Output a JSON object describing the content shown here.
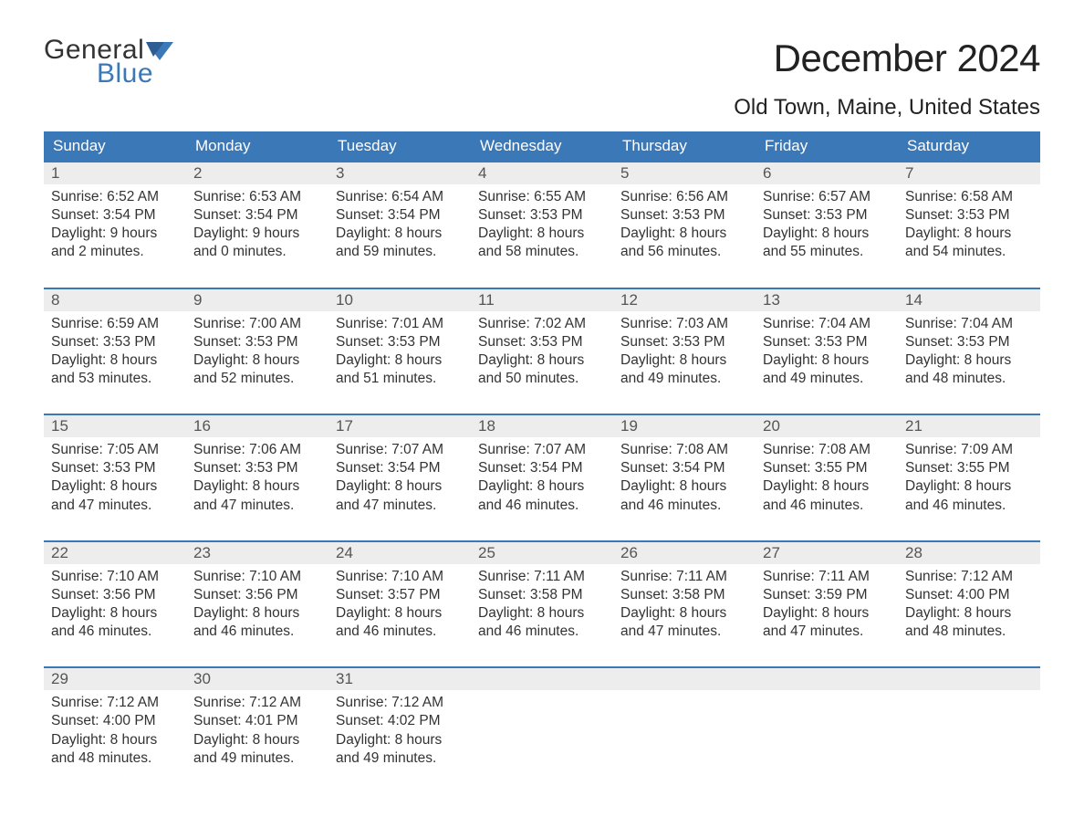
{
  "logo": {
    "text_top": "General",
    "text_bottom": "Blue",
    "flag_color": "#3b78b8",
    "text_top_color": "#333333",
    "text_bottom_color": "#3b78b8"
  },
  "title": "December 2024",
  "location": "Old Town, Maine, United States",
  "colors": {
    "header_bg": "#3b78b8",
    "header_text": "#ffffff",
    "row_border": "#3b78b8",
    "daynum_bg": "#ededed",
    "body_text": "#333333",
    "background": "#ffffff"
  },
  "typography": {
    "title_fontsize": 42,
    "location_fontsize": 24,
    "weekday_fontsize": 17,
    "daynum_fontsize": 17,
    "body_fontsize": 15.5
  },
  "weekdays": [
    "Sunday",
    "Monday",
    "Tuesday",
    "Wednesday",
    "Thursday",
    "Friday",
    "Saturday"
  ],
  "weeks": [
    [
      {
        "day": "1",
        "sunrise": "Sunrise: 6:52 AM",
        "sunset": "Sunset: 3:54 PM",
        "daylight": "Daylight: 9 hours and 2 minutes."
      },
      {
        "day": "2",
        "sunrise": "Sunrise: 6:53 AM",
        "sunset": "Sunset: 3:54 PM",
        "daylight": "Daylight: 9 hours and 0 minutes."
      },
      {
        "day": "3",
        "sunrise": "Sunrise: 6:54 AM",
        "sunset": "Sunset: 3:54 PM",
        "daylight": "Daylight: 8 hours and 59 minutes."
      },
      {
        "day": "4",
        "sunrise": "Sunrise: 6:55 AM",
        "sunset": "Sunset: 3:53 PM",
        "daylight": "Daylight: 8 hours and 58 minutes."
      },
      {
        "day": "5",
        "sunrise": "Sunrise: 6:56 AM",
        "sunset": "Sunset: 3:53 PM",
        "daylight": "Daylight: 8 hours and 56 minutes."
      },
      {
        "day": "6",
        "sunrise": "Sunrise: 6:57 AM",
        "sunset": "Sunset: 3:53 PM",
        "daylight": "Daylight: 8 hours and 55 minutes."
      },
      {
        "day": "7",
        "sunrise": "Sunrise: 6:58 AM",
        "sunset": "Sunset: 3:53 PM",
        "daylight": "Daylight: 8 hours and 54 minutes."
      }
    ],
    [
      {
        "day": "8",
        "sunrise": "Sunrise: 6:59 AM",
        "sunset": "Sunset: 3:53 PM",
        "daylight": "Daylight: 8 hours and 53 minutes."
      },
      {
        "day": "9",
        "sunrise": "Sunrise: 7:00 AM",
        "sunset": "Sunset: 3:53 PM",
        "daylight": "Daylight: 8 hours and 52 minutes."
      },
      {
        "day": "10",
        "sunrise": "Sunrise: 7:01 AM",
        "sunset": "Sunset: 3:53 PM",
        "daylight": "Daylight: 8 hours and 51 minutes."
      },
      {
        "day": "11",
        "sunrise": "Sunrise: 7:02 AM",
        "sunset": "Sunset: 3:53 PM",
        "daylight": "Daylight: 8 hours and 50 minutes."
      },
      {
        "day": "12",
        "sunrise": "Sunrise: 7:03 AM",
        "sunset": "Sunset: 3:53 PM",
        "daylight": "Daylight: 8 hours and 49 minutes."
      },
      {
        "day": "13",
        "sunrise": "Sunrise: 7:04 AM",
        "sunset": "Sunset: 3:53 PM",
        "daylight": "Daylight: 8 hours and 49 minutes."
      },
      {
        "day": "14",
        "sunrise": "Sunrise: 7:04 AM",
        "sunset": "Sunset: 3:53 PM",
        "daylight": "Daylight: 8 hours and 48 minutes."
      }
    ],
    [
      {
        "day": "15",
        "sunrise": "Sunrise: 7:05 AM",
        "sunset": "Sunset: 3:53 PM",
        "daylight": "Daylight: 8 hours and 47 minutes."
      },
      {
        "day": "16",
        "sunrise": "Sunrise: 7:06 AM",
        "sunset": "Sunset: 3:53 PM",
        "daylight": "Daylight: 8 hours and 47 minutes."
      },
      {
        "day": "17",
        "sunrise": "Sunrise: 7:07 AM",
        "sunset": "Sunset: 3:54 PM",
        "daylight": "Daylight: 8 hours and 47 minutes."
      },
      {
        "day": "18",
        "sunrise": "Sunrise: 7:07 AM",
        "sunset": "Sunset: 3:54 PM",
        "daylight": "Daylight: 8 hours and 46 minutes."
      },
      {
        "day": "19",
        "sunrise": "Sunrise: 7:08 AM",
        "sunset": "Sunset: 3:54 PM",
        "daylight": "Daylight: 8 hours and 46 minutes."
      },
      {
        "day": "20",
        "sunrise": "Sunrise: 7:08 AM",
        "sunset": "Sunset: 3:55 PM",
        "daylight": "Daylight: 8 hours and 46 minutes."
      },
      {
        "day": "21",
        "sunrise": "Sunrise: 7:09 AM",
        "sunset": "Sunset: 3:55 PM",
        "daylight": "Daylight: 8 hours and 46 minutes."
      }
    ],
    [
      {
        "day": "22",
        "sunrise": "Sunrise: 7:10 AM",
        "sunset": "Sunset: 3:56 PM",
        "daylight": "Daylight: 8 hours and 46 minutes."
      },
      {
        "day": "23",
        "sunrise": "Sunrise: 7:10 AM",
        "sunset": "Sunset: 3:56 PM",
        "daylight": "Daylight: 8 hours and 46 minutes."
      },
      {
        "day": "24",
        "sunrise": "Sunrise: 7:10 AM",
        "sunset": "Sunset: 3:57 PM",
        "daylight": "Daylight: 8 hours and 46 minutes."
      },
      {
        "day": "25",
        "sunrise": "Sunrise: 7:11 AM",
        "sunset": "Sunset: 3:58 PM",
        "daylight": "Daylight: 8 hours and 46 minutes."
      },
      {
        "day": "26",
        "sunrise": "Sunrise: 7:11 AM",
        "sunset": "Sunset: 3:58 PM",
        "daylight": "Daylight: 8 hours and 47 minutes."
      },
      {
        "day": "27",
        "sunrise": "Sunrise: 7:11 AM",
        "sunset": "Sunset: 3:59 PM",
        "daylight": "Daylight: 8 hours and 47 minutes."
      },
      {
        "day": "28",
        "sunrise": "Sunrise: 7:12 AM",
        "sunset": "Sunset: 4:00 PM",
        "daylight": "Daylight: 8 hours and 48 minutes."
      }
    ],
    [
      {
        "day": "29",
        "sunrise": "Sunrise: 7:12 AM",
        "sunset": "Sunset: 4:00 PM",
        "daylight": "Daylight: 8 hours and 48 minutes."
      },
      {
        "day": "30",
        "sunrise": "Sunrise: 7:12 AM",
        "sunset": "Sunset: 4:01 PM",
        "daylight": "Daylight: 8 hours and 49 minutes."
      },
      {
        "day": "31",
        "sunrise": "Sunrise: 7:12 AM",
        "sunset": "Sunset: 4:02 PM",
        "daylight": "Daylight: 8 hours and 49 minutes."
      },
      {
        "empty": true
      },
      {
        "empty": true
      },
      {
        "empty": true
      },
      {
        "empty": true
      }
    ]
  ]
}
